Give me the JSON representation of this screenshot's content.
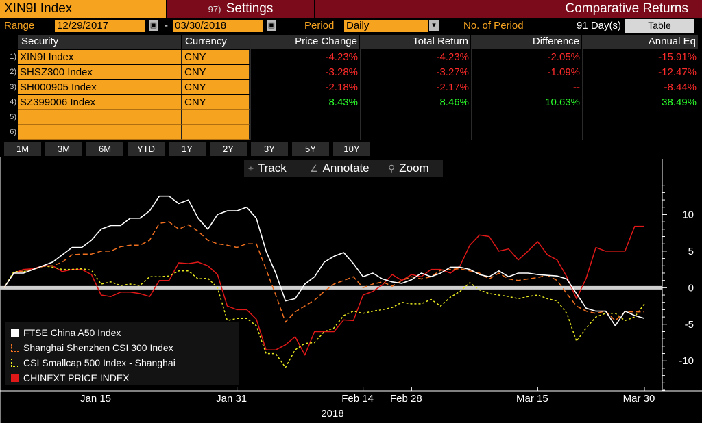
{
  "header": {
    "ticker": "XIN9I Index",
    "settings_num": "97)",
    "settings_label": "Settings",
    "title": "Comparative Returns"
  },
  "controls": {
    "range_label": "Range",
    "start_date": "12/29/2017",
    "end_date": "03/30/2018",
    "date_dash": "-",
    "period_label": "Period",
    "period_value": "Daily",
    "num_period_label": "No. of Period",
    "num_period_value": "91 Day(s)",
    "table_button": "Table"
  },
  "table": {
    "headers": [
      "Security",
      "Currency",
      "Price Change",
      "Total Return",
      "Difference",
      "Annual Eq"
    ],
    "rows": [
      {
        "no": "1)",
        "security": "XIN9I Index",
        "currency": "CNY",
        "price_change": "-4.23%",
        "total_return": "-4.23%",
        "difference": "-2.05%",
        "annual_eq": "-15.91%",
        "tone": "red"
      },
      {
        "no": "2)",
        "security": "SHSZ300 Index",
        "currency": "CNY",
        "price_change": "-3.28%",
        "total_return": "-3.27%",
        "difference": "-1.09%",
        "annual_eq": "-12.47%",
        "tone": "red"
      },
      {
        "no": "3)",
        "security": "SH000905 Index",
        "currency": "CNY",
        "price_change": "-2.18%",
        "total_return": "-2.17%",
        "difference": "--",
        "annual_eq": "-8.44%",
        "tone": "red"
      },
      {
        "no": "4)",
        "security": "SZ399006 Index",
        "currency": "CNY",
        "price_change": "8.43%",
        "total_return": "8.46%",
        "difference": "10.63%",
        "annual_eq": "38.49%",
        "tone": "green"
      },
      {
        "no": "5)",
        "security": "",
        "currency": "",
        "price_change": "",
        "total_return": "",
        "difference": "",
        "annual_eq": "",
        "tone": "red"
      },
      {
        "no": "6)",
        "security": "",
        "currency": "",
        "price_change": "",
        "total_return": "",
        "difference": "",
        "annual_eq": "",
        "tone": "red"
      }
    ]
  },
  "period_buttons": [
    "1M",
    "3M",
    "6M",
    "YTD",
    "1Y",
    "2Y",
    "3Y",
    "5Y",
    "10Y"
  ],
  "chart_tools": [
    {
      "label": "Track",
      "icon": "crosshair-icon",
      "glyph": "⌖"
    },
    {
      "label": "Annotate",
      "icon": "pencil-icon",
      "glyph": "∠"
    },
    {
      "label": "Zoom",
      "icon": "magnifier-icon",
      "glyph": "⚲"
    }
  ],
  "colors": {
    "accent": "#f6a320",
    "header_bg": "#7b0b1a",
    "negative": "#ff2b2b",
    "positive": "#2cff2c",
    "ftse": "#ffffff",
    "csi300": "#f07020",
    "csi500": "#e8e820",
    "chinext": "#e01818"
  },
  "chart_data": {
    "type": "line",
    "x_labels": [
      "Jan 15",
      "Jan 31",
      "Feb 14",
      "Feb 28",
      "Mar 15",
      "Mar 30"
    ],
    "x_label_positions": [
      10,
      24,
      37,
      42,
      55,
      66
    ],
    "year_label": "2018",
    "ylim": [
      -14,
      15
    ],
    "yticks": [
      10,
      5,
      0,
      -5,
      -10
    ],
    "x_count": 67,
    "series": [
      {
        "name": "FTSE China A50 Index",
        "color": "#ffffff",
        "dash": "",
        "values": [
          0,
          2,
          2,
          2.5,
          3,
          3.5,
          4.5,
          5.5,
          5.5,
          6.5,
          8,
          8.5,
          8.5,
          9.5,
          9.5,
          10.5,
          12.5,
          12.5,
          11.5,
          12,
          9.5,
          8,
          10,
          10.5,
          10.5,
          11,
          9.5,
          5,
          2,
          -1.8,
          -1.5,
          0.5,
          1.5,
          3.5,
          4.3,
          4.8,
          3.3,
          1.5,
          2,
          1.2,
          0.8,
          0.6,
          1.1,
          2,
          1.5,
          2,
          2.8,
          2.8,
          2.5,
          1.8,
          1.5,
          2.3,
          1.5,
          2,
          2,
          1.8,
          1.7,
          1.6,
          1.2,
          -0.8,
          -2.8,
          -3.2,
          -3.2,
          -5.2,
          -3.2,
          -3.8,
          -4.2
        ]
      },
      {
        "name": "Shanghai Shenzhen CSI 300 Index",
        "color": "#f07020",
        "dash": "7,4",
        "values": [
          0,
          2,
          2.3,
          2.5,
          2.9,
          3,
          3.5,
          4.5,
          4.6,
          4.6,
          5,
          5,
          5.6,
          5.8,
          5.8,
          6.5,
          8.8,
          9,
          8,
          8.6,
          7.7,
          6.5,
          6,
          5.8,
          5.5,
          6,
          6,
          2.5,
          -1,
          -4.7,
          -3.3,
          -2.5,
          -1.7,
          -0.5,
          0.5,
          1,
          1.5,
          0,
          0.5,
          0.8,
          0.2,
          1,
          1.5,
          1.2,
          1.5,
          2.4,
          2.5,
          2.6,
          2.3,
          2,
          1.2,
          2,
          1.2,
          1,
          1.2,
          1.4,
          1.7,
          1,
          -0.8,
          -2.5,
          -3.2,
          -3.5,
          -3.2,
          -4.5,
          -3.3,
          -3.3,
          -3.3
        ]
      },
      {
        "name": "CSI Smallcap 500 Index - Shanghai",
        "color": "#e8e820",
        "dash": "3,3",
        "values": [
          0,
          2.2,
          2.2,
          2.5,
          3,
          2.8,
          2.5,
          2.5,
          2.6,
          2.4,
          0.5,
          0.8,
          0.3,
          0.5,
          0.3,
          1.5,
          1.5,
          1.6,
          2.3,
          2.3,
          1.2,
          1.3,
          0,
          -4.5,
          -4.2,
          -4.2,
          -5.2,
          -9,
          -9,
          -10.9,
          -8.5,
          -7.6,
          -7.5,
          -6,
          -5.5,
          -3.8,
          -3.2,
          -3.5,
          -3.2,
          -3,
          -2.7,
          -2,
          -2.2,
          -2.2,
          -1.6,
          -2.5,
          -1.3,
          -0.5,
          0.7,
          -0.3,
          -0.8,
          -1,
          -1.2,
          -1.5,
          -1.2,
          -1,
          -1.5,
          -1.8,
          -3.5,
          -7.3,
          -5.5,
          -4,
          -3.5,
          -3.5,
          -4.5,
          -4,
          -2.2
        ]
      },
      {
        "name": "CHINEXT PRICE INDEX",
        "color": "#e01818",
        "dash": "",
        "values": [
          0,
          2,
          2.5,
          2.6,
          3,
          3,
          2.2,
          2.5,
          2.5,
          1.8,
          -1,
          -1.2,
          -0.6,
          -0.6,
          -0.8,
          -1.2,
          1,
          1,
          3.4,
          3.3,
          3.5,
          3,
          1.8,
          -2.5,
          -3,
          -3,
          -4.3,
          -8.5,
          -8.5,
          -7.8,
          -6.7,
          -9.2,
          -6,
          -6,
          -6,
          -4.4,
          -4.5,
          -1,
          -0.5,
          0.4,
          1.8,
          1,
          1.8,
          1.5,
          2.5,
          2.5,
          2,
          3,
          5.8,
          7.2,
          7,
          5,
          5.3,
          3.8,
          5,
          6.3,
          4.5,
          3.8,
          1.5,
          -1.5,
          1.3,
          5.5,
          5,
          5,
          5,
          8.4,
          8.4
        ]
      }
    ],
    "grid": false,
    "legend": "bottom-left"
  }
}
